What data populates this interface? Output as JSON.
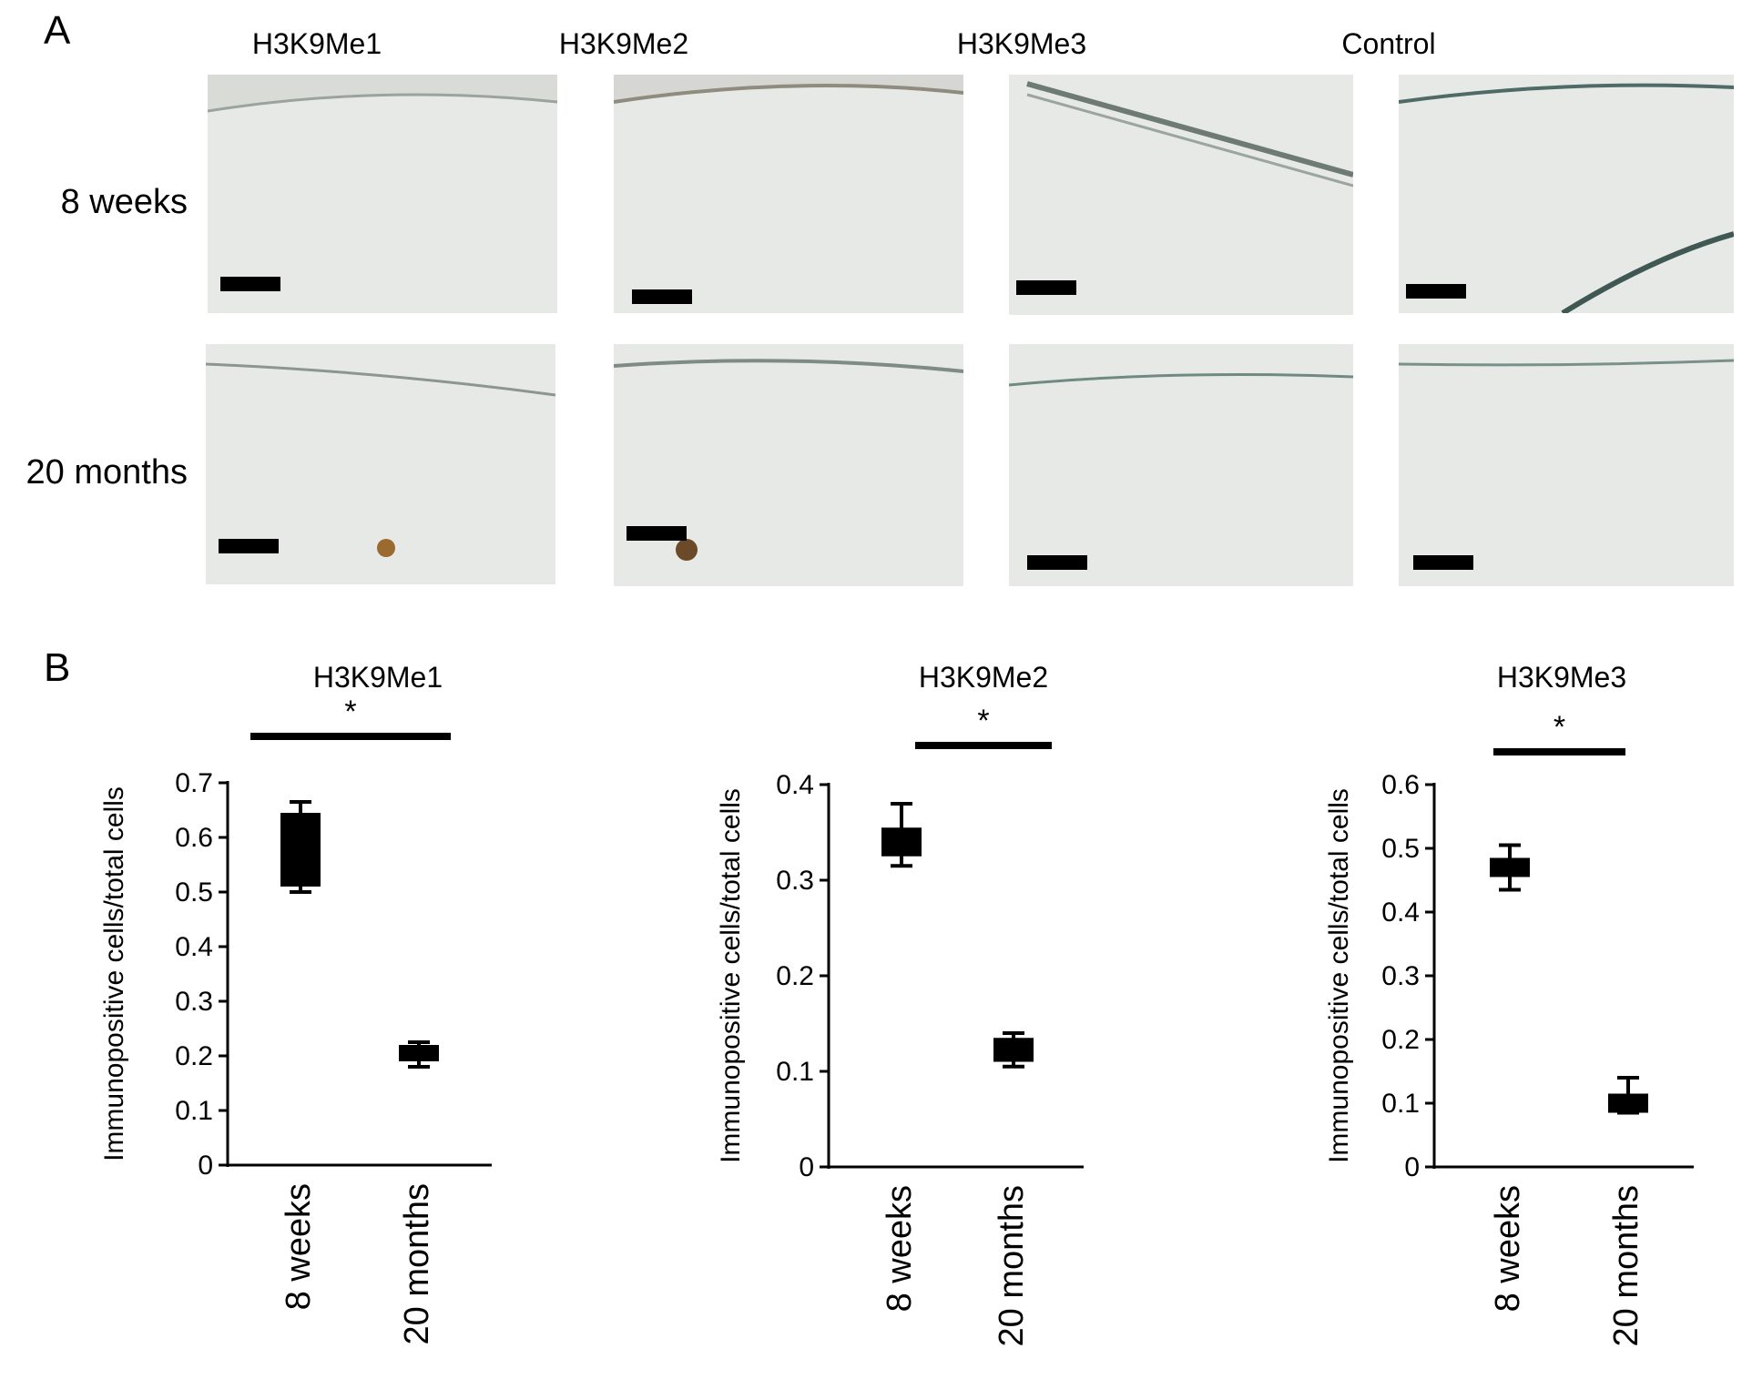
{
  "figure": {
    "panel_a_label": "A",
    "panel_b_label": "B",
    "columns": [
      "H3K9Me1",
      "H3K9Me2",
      "H3K9Me3",
      "Control"
    ],
    "rows": [
      "8 weeks",
      "20 months"
    ]
  },
  "chart_data": [
    {
      "type": "box",
      "title": "H3K9Me1",
      "ylabel": "Immunopositive cells/total cells",
      "categories": [
        "8 weeks",
        "20 months"
      ],
      "ylim": [
        0,
        0.7
      ],
      "yticks": [
        "0",
        "0.1",
        "0.2",
        "0.3",
        "0.4",
        "0.5",
        "0.6",
        "0.7"
      ],
      "boxes": [
        {
          "min": 0.5,
          "q1": 0.51,
          "q3": 0.645,
          "max": 0.665
        },
        {
          "min": 0.18,
          "q1": 0.19,
          "q3": 0.22,
          "max": 0.225
        }
      ],
      "significance": "*"
    },
    {
      "type": "box",
      "title": "H3K9Me2",
      "ylabel": "Immunopositive cells/total cells",
      "categories": [
        "8 weeks",
        "20 months"
      ],
      "ylim": [
        0,
        0.4
      ],
      "yticks": [
        "0",
        "0.1",
        "0.2",
        "0.3",
        "0.4"
      ],
      "boxes": [
        {
          "min": 0.315,
          "q1": 0.325,
          "q3": 0.355,
          "max": 0.38
        },
        {
          "min": 0.105,
          "q1": 0.11,
          "q3": 0.135,
          "max": 0.14
        }
      ],
      "significance": "*"
    },
    {
      "type": "box",
      "title": "H3K9Me3",
      "ylabel": "Immunopositive cells/total cells",
      "categories": [
        "8 weeks",
        "20 months"
      ],
      "ylim": [
        0,
        0.6
      ],
      "yticks": [
        "0",
        "0.1",
        "0.2",
        "0.3",
        "0.4",
        "0.5",
        "0.6"
      ],
      "boxes": [
        {
          "min": 0.435,
          "q1": 0.455,
          "q3": 0.485,
          "max": 0.505
        },
        {
          "min": 0.085,
          "q1": 0.085,
          "q3": 0.115,
          "max": 0.14
        }
      ],
      "significance": "*"
    }
  ]
}
